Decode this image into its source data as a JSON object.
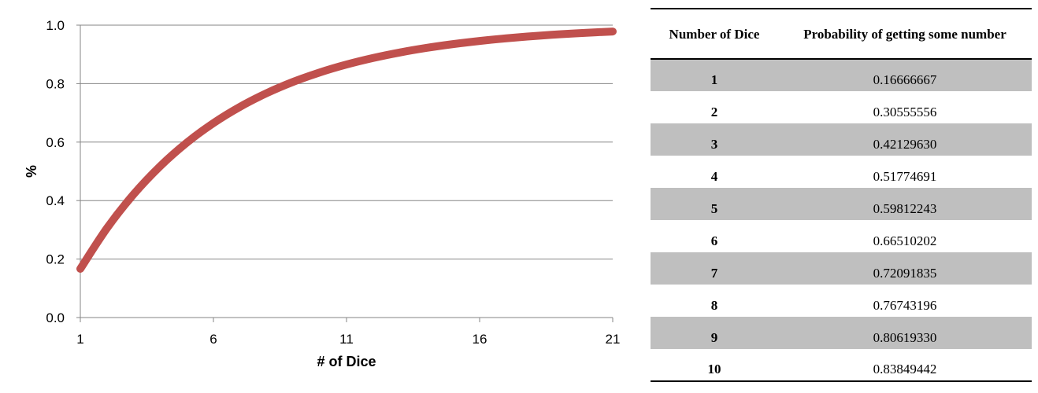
{
  "chart_data": {
    "type": "line",
    "xlabel": "# of Dice",
    "ylabel": "%",
    "xlim": [
      1,
      21
    ],
    "ylim": [
      0,
      1
    ],
    "xticks": [
      1,
      6,
      11,
      16,
      21
    ],
    "yticks": [
      "0.0",
      "0.2",
      "0.4",
      "0.6",
      "0.8",
      "1.0"
    ],
    "grid": "horizontal",
    "line_color": "#c0504d",
    "series": [
      {
        "x": [
          1,
          2,
          3,
          4,
          5,
          6,
          7,
          8,
          9,
          10,
          11,
          12,
          13,
          14,
          15,
          16,
          17,
          18,
          19,
          20,
          21
        ],
        "values": [
          0.1667,
          0.3056,
          0.4213,
          0.5177,
          0.5981,
          0.6651,
          0.7209,
          0.7674,
          0.8062,
          0.8385,
          0.8654,
          0.8878,
          0.9065,
          0.9221,
          0.9351,
          0.9459,
          0.9549,
          0.9624,
          0.9687,
          0.9739,
          0.9783
        ]
      }
    ]
  },
  "table": {
    "headers": [
      "Number of Dice",
      "Probability of getting some number"
    ],
    "rows": [
      [
        "1",
        "0.16666667"
      ],
      [
        "2",
        "0.30555556"
      ],
      [
        "3",
        "0.42129630"
      ],
      [
        "4",
        "0.51774691"
      ],
      [
        "5",
        "0.59812243"
      ],
      [
        "6",
        "0.66510202"
      ],
      [
        "7",
        "0.72091835"
      ],
      [
        "8",
        "0.76743196"
      ],
      [
        "9",
        "0.80619330"
      ],
      [
        "10",
        "0.83849442"
      ]
    ]
  }
}
